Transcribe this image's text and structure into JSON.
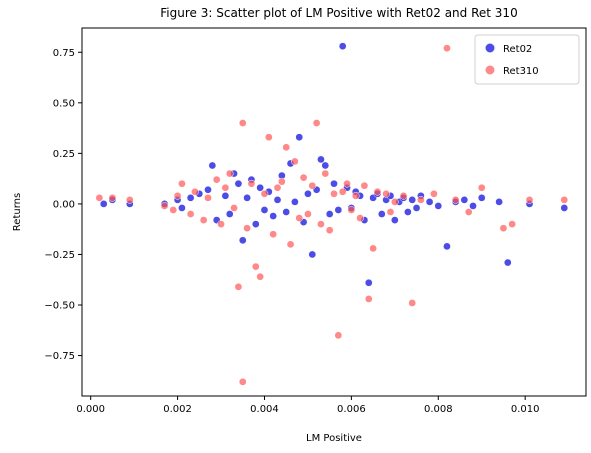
{
  "chart_data": {
    "type": "scatter",
    "title": "Figure 3: Scatter plot of LM Positive  with Ret02 and Ret 310",
    "xlabel": "LM Positive",
    "ylabel": "Returns",
    "xlim": [
      -0.0002,
      0.0114
    ],
    "ylim": [
      -0.95,
      0.87
    ],
    "xticks": [
      0.0,
      0.002,
      0.004,
      0.006,
      0.008,
      0.01
    ],
    "xtick_labels": [
      "0.000",
      "0.002",
      "0.004",
      "0.006",
      "0.008",
      "0.010"
    ],
    "yticks": [
      -0.75,
      -0.5,
      -0.25,
      0.0,
      0.25,
      0.5,
      0.75
    ],
    "ytick_labels": [
      "−0.75",
      "−0.50",
      "−0.25",
      "0.00",
      "0.25",
      "0.50",
      "0.75"
    ],
    "grid": false,
    "legend_position": "top-right",
    "series": [
      {
        "name": "Ret02",
        "color": "#0000dd",
        "points": [
          [
            0.0003,
            0.0
          ],
          [
            0.0005,
            0.02
          ],
          [
            0.0009,
            0.0
          ],
          [
            0.0017,
            0.0
          ],
          [
            0.002,
            0.02
          ],
          [
            0.0021,
            -0.02
          ],
          [
            0.0023,
            0.03
          ],
          [
            0.0025,
            0.05
          ],
          [
            0.0027,
            0.07
          ],
          [
            0.0028,
            0.19
          ],
          [
            0.0029,
            -0.08
          ],
          [
            0.0031,
            0.04
          ],
          [
            0.0032,
            -0.05
          ],
          [
            0.0033,
            0.15
          ],
          [
            0.0034,
            0.1
          ],
          [
            0.0035,
            -0.18
          ],
          [
            0.0036,
            0.03
          ],
          [
            0.0037,
            0.12
          ],
          [
            0.0038,
            -0.1
          ],
          [
            0.0039,
            0.08
          ],
          [
            0.004,
            -0.03
          ],
          [
            0.0041,
            0.06
          ],
          [
            0.0042,
            -0.06
          ],
          [
            0.0043,
            0.02
          ],
          [
            0.0044,
            0.14
          ],
          [
            0.0045,
            -0.04
          ],
          [
            0.0046,
            0.2
          ],
          [
            0.0047,
            0.01
          ],
          [
            0.0048,
            0.33
          ],
          [
            0.0049,
            -0.09
          ],
          [
            0.005,
            0.05
          ],
          [
            0.0051,
            -0.25
          ],
          [
            0.0052,
            0.07
          ],
          [
            0.0053,
            0.22
          ],
          [
            0.0054,
            0.19
          ],
          [
            0.0055,
            -0.05
          ],
          [
            0.0056,
            0.1
          ],
          [
            0.0057,
            -0.03
          ],
          [
            0.0058,
            0.78
          ],
          [
            0.0059,
            0.08
          ],
          [
            0.006,
            -0.02
          ],
          [
            0.0061,
            0.06
          ],
          [
            0.0062,
            0.04
          ],
          [
            0.0063,
            -0.08
          ],
          [
            0.0064,
            -0.39
          ],
          [
            0.0065,
            0.03
          ],
          [
            0.0066,
            0.05
          ],
          [
            0.0067,
            -0.05
          ],
          [
            0.0068,
            0.02
          ],
          [
            0.0069,
            0.04
          ],
          [
            0.007,
            -0.08
          ],
          [
            0.0071,
            0.01
          ],
          [
            0.0072,
            0.03
          ],
          [
            0.0073,
            -0.04
          ],
          [
            0.0074,
            0.02
          ],
          [
            0.0075,
            -0.02
          ],
          [
            0.0076,
            0.04
          ],
          [
            0.0078,
            0.01
          ],
          [
            0.008,
            -0.01
          ],
          [
            0.0082,
            -0.21
          ],
          [
            0.0084,
            0.01
          ],
          [
            0.0086,
            0.02
          ],
          [
            0.0088,
            -0.01
          ],
          [
            0.009,
            0.03
          ],
          [
            0.0094,
            0.01
          ],
          [
            0.0096,
            -0.29
          ],
          [
            0.0101,
            0.0
          ],
          [
            0.0109,
            -0.02
          ]
        ]
      },
      {
        "name": "Ret310",
        "color": "#ff5555",
        "points": [
          [
            0.0002,
            0.03
          ],
          [
            0.0005,
            0.03
          ],
          [
            0.0009,
            0.02
          ],
          [
            0.0017,
            -0.01
          ],
          [
            0.0019,
            -0.03
          ],
          [
            0.002,
            0.04
          ],
          [
            0.0021,
            0.1
          ],
          [
            0.0023,
            -0.05
          ],
          [
            0.0024,
            0.06
          ],
          [
            0.0026,
            -0.08
          ],
          [
            0.0027,
            0.03
          ],
          [
            0.0029,
            0.12
          ],
          [
            0.003,
            -0.1
          ],
          [
            0.0031,
            0.08
          ],
          [
            0.0032,
            0.15
          ],
          [
            0.0033,
            -0.02
          ],
          [
            0.0034,
            -0.41
          ],
          [
            0.0035,
            0.4
          ],
          [
            0.0036,
            -0.12
          ],
          [
            0.0037,
            0.1
          ],
          [
            0.0038,
            -0.31
          ],
          [
            0.0039,
            -0.36
          ],
          [
            0.004,
            0.05
          ],
          [
            0.0041,
            0.33
          ],
          [
            0.0042,
            -0.15
          ],
          [
            0.0043,
            0.08
          ],
          [
            0.0044,
            0.11
          ],
          [
            0.0045,
            0.28
          ],
          [
            0.0046,
            -0.2
          ],
          [
            0.0047,
            0.21
          ],
          [
            0.0048,
            -0.07
          ],
          [
            0.0049,
            0.13
          ],
          [
            0.005,
            -0.05
          ],
          [
            0.0051,
            0.09
          ],
          [
            0.0052,
            0.4
          ],
          [
            0.0053,
            -0.1
          ],
          [
            0.0054,
            0.15
          ],
          [
            0.0055,
            -0.13
          ],
          [
            0.0056,
            0.05
          ],
          [
            0.0057,
            -0.65
          ],
          [
            0.0058,
            0.06
          ],
          [
            0.0059,
            0.1
          ],
          [
            0.006,
            -0.03
          ],
          [
            0.0061,
            0.04
          ],
          [
            0.0062,
            -0.07
          ],
          [
            0.0063,
            0.09
          ],
          [
            0.0064,
            -0.47
          ],
          [
            0.0065,
            -0.22
          ],
          [
            0.0066,
            0.06
          ],
          [
            0.0068,
            0.05
          ],
          [
            0.0069,
            -0.04
          ],
          [
            0.007,
            0.01
          ],
          [
            0.0072,
            0.04
          ],
          [
            0.0074,
            -0.49
          ],
          [
            0.0076,
            0.02
          ],
          [
            0.0079,
            0.05
          ],
          [
            0.0082,
            0.77
          ],
          [
            0.0084,
            0.02
          ],
          [
            0.0087,
            -0.04
          ],
          [
            0.009,
            0.08
          ],
          [
            0.0095,
            -0.12
          ],
          [
            0.0097,
            -0.1
          ],
          [
            0.0101,
            0.02
          ],
          [
            0.0109,
            0.02
          ],
          [
            0.0035,
            -0.88
          ]
        ]
      }
    ]
  }
}
